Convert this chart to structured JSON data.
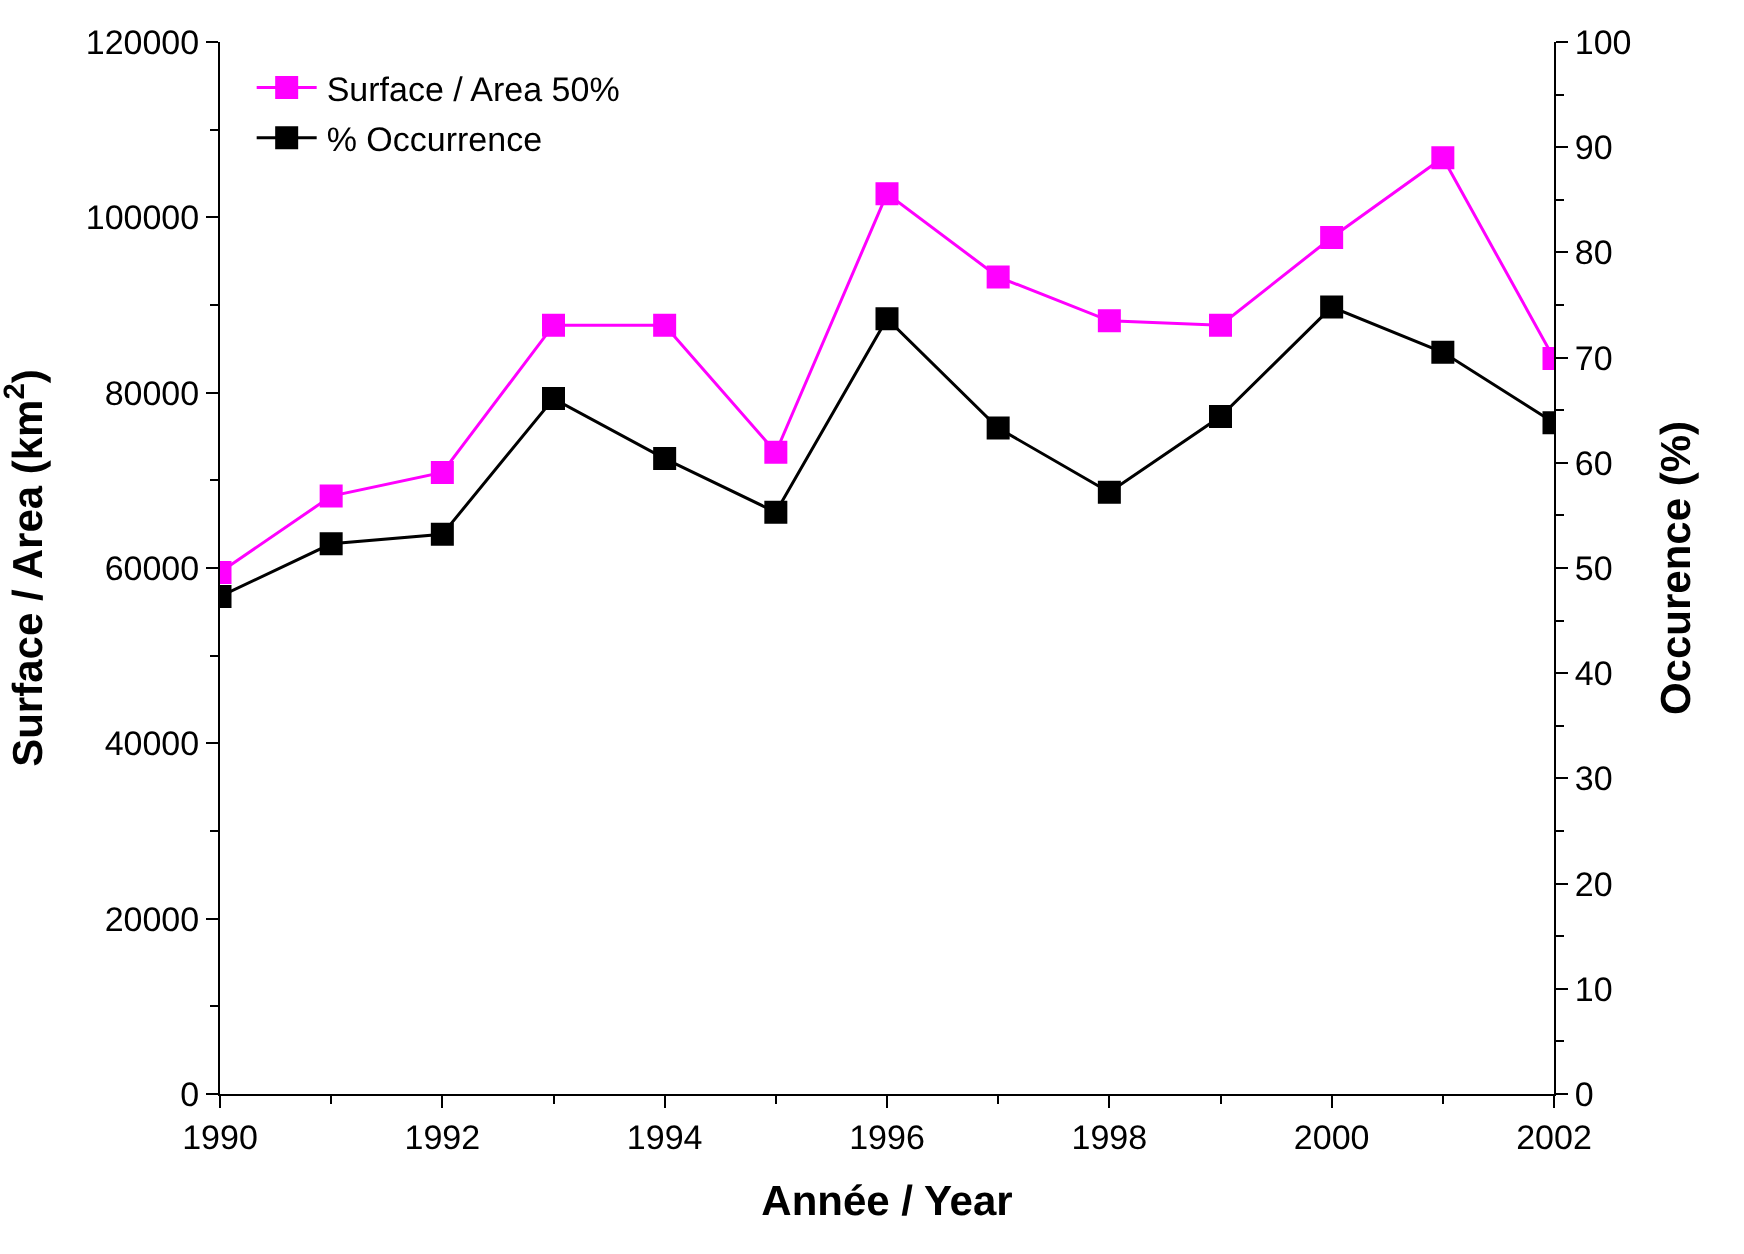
{
  "chart_data": {
    "type": "line",
    "xlabel": "Année / Year",
    "ylabel": "Surface / Area (km$^{2}$)",
    "y2label": "Occurence (%)",
    "x": [
      1990,
      1991,
      1992,
      1993,
      1994,
      1995,
      1996,
      1997,
      1998,
      1999,
      2000,
      2001,
      2002
    ],
    "series": [
      {
        "name": "Surface / Area 50%",
        "color": "#ff00ff",
        "values": [
          59500,
          68200,
          70900,
          87700,
          87700,
          73200,
          102700,
          93200,
          88200,
          87700,
          97700,
          106800,
          83900
        ]
      },
      {
        "name": "% Occurrence",
        "color": "#000000",
        "axis": "y2",
        "values": [
          47.3,
          52.3,
          53.2,
          66.1,
          60.4,
          55.3,
          73.7,
          63.3,
          57.2,
          64.4,
          74.8,
          70.5,
          63.8
        ]
      }
    ],
    "xlim": [
      1990,
      2002
    ],
    "xticks": [
      1990,
      1992,
      1994,
      1996,
      1998,
      2000,
      2002
    ],
    "ylim": [
      0,
      120000
    ],
    "yticks": [
      0,
      20000,
      40000,
      60000,
      80000,
      100000,
      120000
    ],
    "y2lim": [
      0,
      100
    ],
    "y2ticks": [
      0,
      10,
      20,
      30,
      40,
      50,
      60,
      70,
      80,
      90,
      100
    ],
    "legend": "top left",
    "marker": "square",
    "line_style": "solid"
  }
}
